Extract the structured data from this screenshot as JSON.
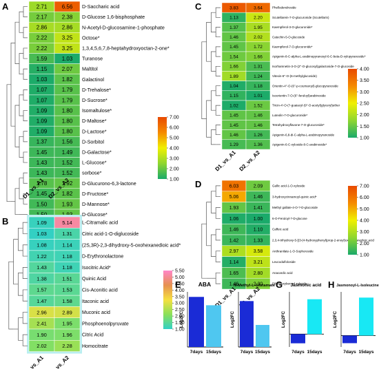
{
  "colors": {
    "scale": [
      "#1aaa6a",
      "#8fd630",
      "#f0f000",
      "#f58a00",
      "#e84a00"
    ],
    "scaleB": [
      "#31d0c6",
      "#8ae05a",
      "#f5e040",
      "#e69050",
      "#ff86c8"
    ],
    "bar_dark": "#1a2bd6",
    "bar_light": "#4fc7f0",
    "bar_cyan": "#18e8f4"
  },
  "chart_data": [
    {
      "panel": "A",
      "type": "heatmap",
      "columns": [
        "D1_vs_A1",
        "D2_vs_A2"
      ],
      "legend": {
        "ticks": [
          "7.00",
          "6.00",
          "5.00",
          "4.00",
          "3.00",
          "2.00",
          "1.00"
        ],
        "min": 1,
        "max": 7
      },
      "rows": [
        {
          "label": "D-Saccharic acid",
          "values": [
            2.71,
            6.56
          ]
        },
        {
          "label": "D-Glucose 1,6-bisphosphate",
          "values": [
            2.17,
            2.38
          ]
        },
        {
          "label": "N-Acetyl-D-glucosamine-1-phosphate",
          "values": [
            2.86,
            2.86
          ]
        },
        {
          "label": "Octose*",
          "values": [
            2.22,
            3.25
          ]
        },
        {
          "label": "1,3,4,5,6,7,8-heptahydroxyoctan-2-one*",
          "values": [
            2.22,
            3.25
          ]
        },
        {
          "label": "Turanose",
          "values": [
            1.59,
            1.03
          ]
        },
        {
          "label": "Maltitol",
          "values": [
            1.15,
            2.07
          ]
        },
        {
          "label": "Galactinol",
          "values": [
            1.03,
            1.82
          ]
        },
        {
          "label": "D-Trehalose*",
          "values": [
            1.07,
            1.79
          ]
        },
        {
          "label": "D-Sucrose*",
          "values": [
            1.07,
            1.79
          ]
        },
        {
          "label": "Isomaltulose*",
          "values": [
            1.09,
            1.8
          ]
        },
        {
          "label": "D-Maltose*",
          "values": [
            1.09,
            1.8
          ]
        },
        {
          "label": "D-Lactose*",
          "values": [
            1.09,
            1.8
          ]
        },
        {
          "label": "D-Sorbitol",
          "values": [
            1.37,
            1.56
          ]
        },
        {
          "label": "D-Galactose*",
          "values": [
            1.45,
            1.49
          ]
        },
        {
          "label": "L-Glucose*",
          "values": [
            1.43,
            1.52
          ]
        },
        {
          "label": "sorbose*",
          "values": [
            1.43,
            1.52
          ]
        },
        {
          "label": "D-Glucurono-6,3-lactone",
          "values": [
            1.78,
            1.92
          ]
        },
        {
          "label": "D-Fructose*",
          "values": [
            1.45,
            1.82
          ]
        },
        {
          "label": "D-Mannose*",
          "values": [
            1.5,
            1.93
          ]
        },
        {
          "label": "D-Glucose*",
          "values": [
            1.5,
            1.93
          ]
        }
      ]
    },
    {
      "panel": "B",
      "type": "heatmap",
      "columns": [
        "D1_vs_A1",
        "D2_vs_A2"
      ],
      "legend": {
        "ticks": [
          "5.50",
          "5.00",
          "4.50",
          "4.00",
          "3.50",
          "3.00",
          "2.50",
          "2.00",
          "1.50",
          "1.00"
        ],
        "min": 1,
        "max": 5.5
      },
      "rows": [
        {
          "label": "L-Citramalic acid",
          "values": [
            1.09,
            5.14
          ]
        },
        {
          "label": "Citric acid-1-O-diglucoside",
          "values": [
            1.03,
            1.31
          ]
        },
        {
          "label": "(2S,3R)-2,3-dihydroxy-5-oxohexanedioic acid*",
          "values": [
            1.08,
            1.14
          ]
        },
        {
          "label": "D-Erythronolactone",
          "values": [
            1.22,
            1.18
          ]
        },
        {
          "label": "Isocitric Acid*",
          "values": [
            1.43,
            1.18
          ]
        },
        {
          "label": "Quinic Acid",
          "values": [
            1.38,
            1.51
          ]
        },
        {
          "label": "Cis-Aconitic acid",
          "values": [
            1.57,
            1.53
          ]
        },
        {
          "label": "Itaconic acid",
          "values": [
            1.47,
            1.58
          ]
        },
        {
          "label": "Muconic acid",
          "values": [
            2.96,
            2.89
          ]
        },
        {
          "label": "Phosphoenolpyruvate",
          "values": [
            2.41,
            1.95
          ]
        },
        {
          "label": "Citric Acid",
          "values": [
            1.9,
            1.96
          ]
        },
        {
          "label": "Homocitrate",
          "values": [
            2.02,
            2.28
          ]
        }
      ]
    },
    {
      "panel": "C",
      "type": "heatmap",
      "columns": [
        "D1_vs_A1",
        "D2_vs_A2"
      ],
      "legend": {
        "ticks": [
          "4.00",
          "3.50",
          "3.00",
          "2.50",
          "2.00",
          "1.50",
          "1.00"
        ],
        "min": 1,
        "max": 4
      },
      "rows": [
        {
          "label": "Phellodendroside",
          "values": [
            3.83,
            3.64
          ]
        },
        {
          "label": "Scutellarein-7-O-glucuronide (Scutellarin)",
          "values": [
            1.13,
            2.2
          ]
        },
        {
          "label": "Kaempferol-3-O-glucuronide*",
          "values": [
            1.37,
            1.95
          ]
        },
        {
          "label": "Catechin-5-O-glucoside",
          "values": [
            1.46,
            2.02
          ]
        },
        {
          "label": "Kaempferol-7-O-glucuronide*",
          "values": [
            1.45,
            1.72
          ]
        },
        {
          "label": "Apigenin-8-C-alpha-L-arabinopyranosyl-6-C-beta-D-xylopyranoside*",
          "values": [
            1.54,
            1.66
          ]
        },
        {
          "label": "Isorhamnetin-3-O-(2''-O-glucosyl)galactoside-7-O-glucoside",
          "values": [
            1.66,
            1.31
          ]
        },
        {
          "label": "Vitexin-6''-O-(6-methylglucoside)",
          "values": [
            1.89,
            1.24
          ]
        },
        {
          "label": "Orientin-4''-O-(6''-p-coumaroyl)-glucopyranoside",
          "values": [
            1.04,
            1.18
          ]
        },
        {
          "label": "Isoorientin-7-O-(6''-feruloyl)arabinoside",
          "values": [
            1.15,
            1.01
          ]
        },
        {
          "label": "Tricin-4'-O-(?-guaiacyl-(9''-O-acetyl)glyceryl)ether",
          "values": [
            1.02,
            1.52
          ]
        },
        {
          "label": "Luteolin-7-O-glucuronide*",
          "values": [
            1.45,
            1.46
          ]
        },
        {
          "label": "Tetrahydroxyflavone-7-O-glucuronide*",
          "values": [
            1.45,
            1.46
          ]
        },
        {
          "label": "Apigenin-6,8-di-C-alpha-L-arabinopyranoside",
          "values": [
            1.46,
            1.26
          ]
        },
        {
          "label": "Apigenin-6-C-xyloside-8-C-arabinoside*",
          "values": [
            1.29,
            1.36
          ]
        }
      ]
    },
    {
      "panel": "D",
      "type": "heatmap",
      "columns": [
        "D1_vs_A1",
        "D2_vs_A2"
      ],
      "legend": {
        "ticks": [
          "7.00",
          "6.00",
          "5.00",
          "4.00",
          "3.00",
          "2.00",
          "1.00"
        ],
        "min": 1,
        "max": 7
      },
      "rows": [
        {
          "label": "Gallic acid-1-O-xyloside",
          "values": [
            6.03,
            2.09
          ]
        },
        {
          "label": "3-hydroxycinnamoyl-quinic acid*",
          "values": [
            5.06,
            1.46
          ]
        },
        {
          "label": "Methyl gallate-4-O-?-D-glucoside",
          "values": [
            1.93,
            1.41
          ]
        },
        {
          "label": "6-O-Feruloyl-?-D-glucose",
          "values": [
            1.06,
            1.0
          ]
        },
        {
          "label": "Caffeic acid",
          "values": [
            1.46,
            1.1
          ]
        },
        {
          "label": "2,3,4-trihydroxy-5-[(3-(4-hydroxyphenyl)prop-2-enoyl)oxy]hexanedioic acid",
          "values": [
            1.42,
            1.33
          ]
        },
        {
          "label": "Anthranilate-1-O-Sophoroside",
          "values": [
            2.97,
            3.58
          ]
        },
        {
          "label": "Leucodulfoloside",
          "values": [
            1.14,
            3.21
          ]
        },
        {
          "label": "Anacardic acid",
          "values": [
            1.65,
            2.8
          ]
        },
        {
          "label": "Dihydroxybenzyl xyloside",
          "values": [
            1.46,
            2.3
          ]
        }
      ]
    },
    {
      "panel": "E",
      "type": "bar",
      "title": "ABA",
      "ylabel": "Log2FC",
      "categories": [
        "7days",
        "15days"
      ],
      "values": [
        3.0,
        2.5
      ],
      "ylim": [
        0,
        3.3
      ]
    },
    {
      "panel": "F",
      "type": "bar",
      "title": "N-Methyl-L-Glutamate",
      "ylabel": "Log2FC",
      "categories": [
        "7days",
        "15days"
      ],
      "values": [
        2.5,
        1.2
      ],
      "ylim": [
        0,
        3.0
      ]
    },
    {
      "panel": "G",
      "type": "bar",
      "title": "Jasmonic acid",
      "ylabel": "Log2FC",
      "categories": [
        "7days",
        "15days"
      ],
      "values": [
        -0.5,
        1.9
      ],
      "ylim": [
        -0.7,
        2.3
      ]
    },
    {
      "panel": "H",
      "type": "bar",
      "title": "Jasmonoyl-L-Isoleucine",
      "ylabel": "Log2FC",
      "categories": [
        "7days",
        "15days"
      ],
      "values": [
        -0.4,
        2.0
      ],
      "ylim": [
        -0.6,
        2.3
      ]
    }
  ]
}
